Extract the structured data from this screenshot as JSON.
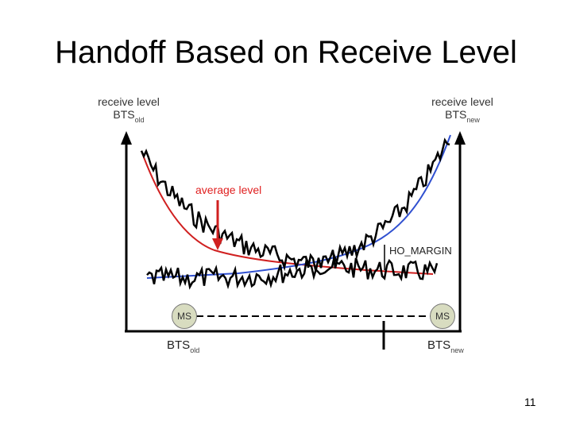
{
  "slide": {
    "title": "Handoff Based on Receive Level",
    "page_number": "11"
  },
  "diagram": {
    "left_axis": {
      "line1": "receive level",
      "bts": "BTS",
      "sub": "old"
    },
    "right_axis": {
      "line1": "receive level",
      "bts": "BTS",
      "sub": "new"
    },
    "average_level_label": "average level",
    "ho_margin_label": "HO_MARGIN",
    "ms_left": "MS",
    "ms_right": "MS",
    "bts_old": {
      "text": "BTS",
      "sub": "old"
    },
    "bts_new": {
      "text": "BTS",
      "sub": "new"
    },
    "colors": {
      "signal": "#000000",
      "average_old": "#d02020",
      "average_new": "#3050d0",
      "average_label": "#e02020",
      "ms_fill": "#d8dcc0"
    }
  }
}
